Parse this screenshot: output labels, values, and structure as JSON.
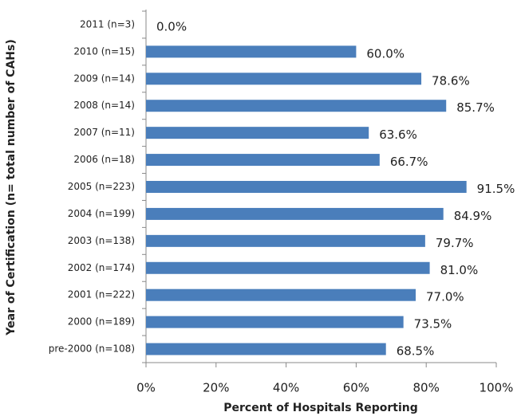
{
  "chart_data": {
    "type": "bar",
    "orientation": "horizontal",
    "x_label": "Percent of Hospitals Reporting",
    "y_label": "Year of Certification  (n= total number of CAHs)",
    "categories": [
      "2011 (n=3)",
      "2010 (n=15)",
      "2009 (n=14)",
      "2008 (n=14)",
      "2007 (n=11)",
      "2006 (n=18)",
      "2005 (n=223)",
      "2004 (n=199)",
      "2003 (n=138)",
      "2002 (n=174)",
      "2001 (n=222)",
      "2000 (n=189)",
      "pre-2000 (n=108)"
    ],
    "values": [
      0,
      60,
      78.6,
      85.7,
      63.6,
      66.7,
      91.5,
      84.9,
      79.7,
      81,
      77,
      73.5,
      68.5
    ],
    "value_labels": [
      "0.0%",
      "60.0%",
      "78.6%",
      "85.7%",
      "63.6%",
      "66.7%",
      "91.5%",
      "84.9%",
      "79.7%",
      "81.0%",
      "77.0%",
      "73.5%",
      "68.5%"
    ],
    "color": "#4a7ebb",
    "xlim": [
      0,
      100
    ],
    "xticks": [
      {
        "value": 0,
        "label": "0%"
      },
      {
        "value": 20,
        "label": "20%"
      },
      {
        "value": 40,
        "label": "40%"
      },
      {
        "value": 60,
        "label": "60%"
      },
      {
        "value": 80,
        "label": "80%"
      },
      {
        "value": 100,
        "label": "100%"
      }
    ]
  }
}
